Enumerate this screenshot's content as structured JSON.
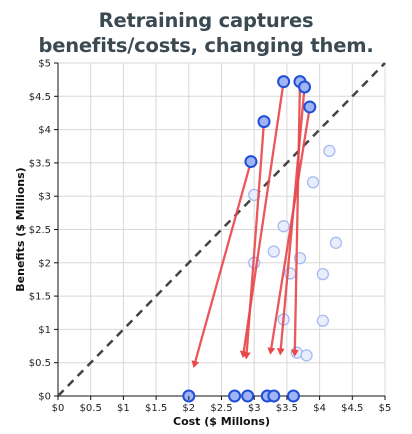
{
  "title_lines": [
    "Retraining captures",
    "benefits/costs, changing them."
  ],
  "chart_data": {
    "type": "scatter",
    "title": "Retraining captures benefits/costs, changing them.",
    "xlabel": "Cost ($ Millons)",
    "ylabel": "Benefits ($ Millions)",
    "xlim": [
      0,
      5
    ],
    "ylim": [
      0,
      5
    ],
    "xticks": [
      "$0",
      "$0.5",
      "$1",
      "$1.5",
      "$2",
      "$2.5",
      "$3",
      "$3.5",
      "$4",
      "$4.5",
      "$5"
    ],
    "yticks": [
      "$0",
      "$0.5",
      "$1",
      "$1.5",
      "$2",
      "$2.5",
      "$3",
      "$3.5",
      "$4",
      "$4.5",
      "$5"
    ],
    "grid": true,
    "diagonal": {
      "from": [
        0,
        0
      ],
      "to": [
        5,
        5
      ],
      "style": "dashed",
      "color": "#444444"
    },
    "series": [
      {
        "values": [
          [
            2.0,
            0
          ],
          [
            2.7,
            0
          ],
          [
            2.9,
            0
          ],
          [
            3.2,
            0
          ],
          [
            3.3,
            0
          ],
          [
            3.6,
            0
          ],
          [
            2.95,
            3.52
          ],
          [
            3.15,
            4.12
          ],
          [
            3.45,
            4.72
          ],
          [
            3.7,
            4.72
          ],
          [
            3.77,
            4.64
          ],
          [
            3.85,
            4.34
          ]
        ],
        "color": "#1f4fd6",
        "fill": "#9fb3f5",
        "style": "solid"
      },
      {
        "values": [
          [
            3.0,
            3.02
          ],
          [
            3.3,
            2.17
          ],
          [
            3.0,
            2.0
          ],
          [
            3.45,
            2.55
          ],
          [
            3.7,
            2.07
          ],
          [
            3.55,
            1.84
          ],
          [
            3.9,
            3.21
          ],
          [
            4.15,
            3.68
          ],
          [
            4.25,
            2.3
          ],
          [
            4.05,
            1.83
          ],
          [
            3.45,
            1.15
          ],
          [
            4.05,
            1.13
          ],
          [
            3.65,
            0.65
          ],
          [
            3.8,
            0.61
          ]
        ],
        "color": "#a9b9f3",
        "fill": "#e9eefc",
        "style": "faded"
      }
    ],
    "arrows": {
      "color": "#e8464a",
      "segments": [
        [
          [
            2.95,
            3.52
          ],
          [
            2.08,
            0.45
          ]
        ],
        [
          [
            3.15,
            4.12
          ],
          [
            2.88,
            0.58
          ]
        ],
        [
          [
            3.45,
            4.72
          ],
          [
            2.83,
            0.6
          ]
        ],
        [
          [
            3.7,
            4.72
          ],
          [
            3.62,
            0.62
          ]
        ],
        [
          [
            3.77,
            4.64
          ],
          [
            3.4,
            0.64
          ]
        ],
        [
          [
            3.85,
            4.34
          ],
          [
            3.25,
            0.65
          ]
        ]
      ]
    }
  },
  "colors": {
    "grid": "#d8d8d8",
    "axis": "#111111",
    "title": "#3b4a52"
  }
}
